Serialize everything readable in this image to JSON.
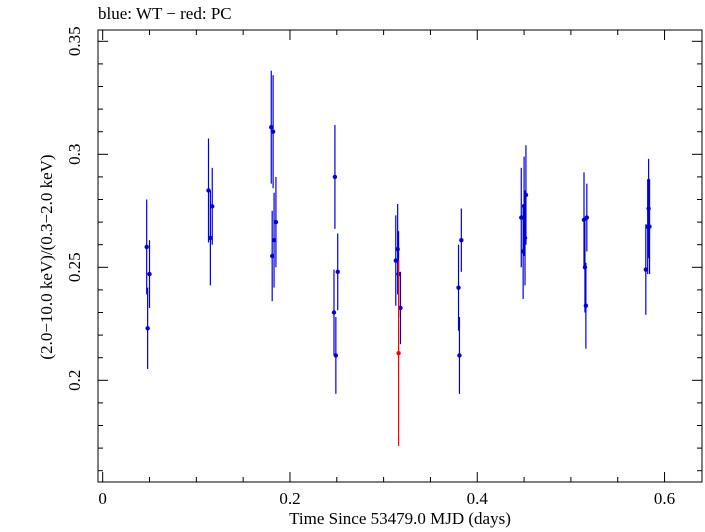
{
  "chart_data": {
    "type": "scatter",
    "title": "blue: WT − red: PC",
    "xlabel": "Time Since 53479.0 MJD (days)",
    "ylabel": "(2.0−10.0 keV)/(0.3−2.0 keV)",
    "xlim": [
      -0.005,
      0.64
    ],
    "ylim": [
      0.155,
      0.355
    ],
    "xticks": [
      {
        "value": 0,
        "label": "0"
      },
      {
        "value": 0.2,
        "label": "0.2"
      },
      {
        "value": 0.4,
        "label": "0.4"
      },
      {
        "value": 0.6,
        "label": "0.6"
      }
    ],
    "yticks": [
      {
        "value": 0.2,
        "label": "0.2"
      },
      {
        "value": 0.25,
        "label": "0.25"
      },
      {
        "value": 0.3,
        "label": "0.3"
      },
      {
        "value": 0.35,
        "label": "0.35"
      }
    ],
    "grid": false,
    "series": [
      {
        "name": "WT",
        "color": "#0000dd",
        "points": [
          {
            "x": 0.047,
            "y": 0.259,
            "err": 0.021
          },
          {
            "x": 0.048,
            "y": 0.223,
            "err": 0.018
          },
          {
            "x": 0.05,
            "y": 0.247,
            "err": 0.015
          },
          {
            "x": 0.113,
            "y": 0.284,
            "err": 0.023
          },
          {
            "x": 0.115,
            "y": 0.263,
            "err": 0.021
          },
          {
            "x": 0.117,
            "y": 0.277,
            "err": 0.017
          },
          {
            "x": 0.18,
            "y": 0.312,
            "err": 0.025
          },
          {
            "x": 0.181,
            "y": 0.255,
            "err": 0.02
          },
          {
            "x": 0.182,
            "y": 0.31,
            "err": 0.025
          },
          {
            "x": 0.183,
            "y": 0.262,
            "err": 0.021
          },
          {
            "x": 0.185,
            "y": 0.27,
            "err": 0.02
          },
          {
            "x": 0.247,
            "y": 0.23,
            "err": 0.019
          },
          {
            "x": 0.248,
            "y": 0.29,
            "err": 0.023
          },
          {
            "x": 0.249,
            "y": 0.211,
            "err": 0.017
          },
          {
            "x": 0.251,
            "y": 0.248,
            "err": 0.017
          },
          {
            "x": 0.313,
            "y": 0.253,
            "err": 0.02
          },
          {
            "x": 0.315,
            "y": 0.258,
            "err": 0.02
          },
          {
            "x": 0.316,
            "y": 0.247,
            "err": 0.019
          },
          {
            "x": 0.318,
            "y": 0.232,
            "err": 0.016
          },
          {
            "x": 0.38,
            "y": 0.241,
            "err": 0.019
          },
          {
            "x": 0.381,
            "y": 0.211,
            "err": 0.017
          },
          {
            "x": 0.383,
            "y": 0.262,
            "err": 0.014
          },
          {
            "x": 0.447,
            "y": 0.272,
            "err": 0.022
          },
          {
            "x": 0.449,
            "y": 0.257,
            "err": 0.021
          },
          {
            "x": 0.45,
            "y": 0.277,
            "err": 0.022
          },
          {
            "x": 0.451,
            "y": 0.263,
            "err": 0.021
          },
          {
            "x": 0.452,
            "y": 0.282,
            "err": 0.022
          },
          {
            "x": 0.514,
            "y": 0.271,
            "err": 0.021
          },
          {
            "x": 0.515,
            "y": 0.25,
            "err": 0.02
          },
          {
            "x": 0.516,
            "y": 0.233,
            "err": 0.019
          },
          {
            "x": 0.517,
            "y": 0.272,
            "err": 0.015
          },
          {
            "x": 0.58,
            "y": 0.249,
            "err": 0.02
          },
          {
            "x": 0.582,
            "y": 0.268,
            "err": 0.021
          },
          {
            "x": 0.583,
            "y": 0.276,
            "err": 0.022
          },
          {
            "x": 0.584,
            "y": 0.268,
            "err": 0.021
          }
        ]
      },
      {
        "name": "PC",
        "color": "#ff0000",
        "points": [
          {
            "x": 0.316,
            "y": 0.212,
            "err": 0.041
          }
        ]
      }
    ]
  }
}
